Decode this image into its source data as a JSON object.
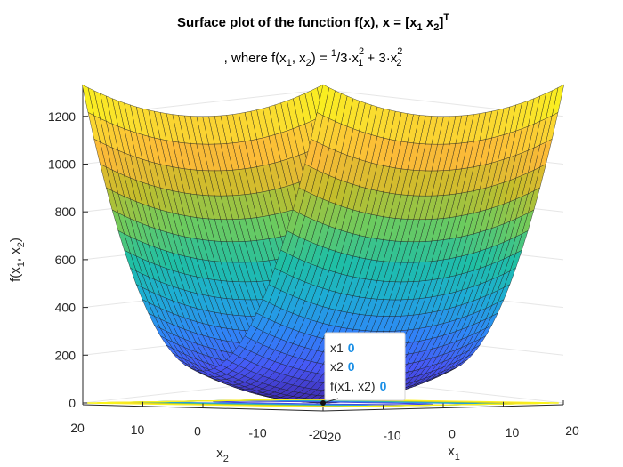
{
  "chart_data": {
    "type": "surface",
    "title": {
      "main": "Surface plot of the function f(x), x = [x",
      "main_sub1": "1",
      "main_mid": " x",
      "main_sub2": "2",
      "main_end": "]",
      "main_sup": "T",
      "line2_a": ", where f(x",
      "line2_sub1": "1",
      "line2_b": ", x",
      "line2_sub2": "2",
      "line2_c": ") = ",
      "line2_frac_num": "1",
      "line2_frac_den": "/3",
      "line2_d": "·x",
      "line2_sup1": "2",
      "line2_sub3": "1",
      "line2_e": " + 3·x",
      "line2_sup2": "2",
      "line2_sub4": "2"
    },
    "function": "f(x1, x2) = (1/3)*x1^2 + 3*x2^2",
    "x1_range": [
      -20,
      20
    ],
    "x2_range": [
      -20,
      20
    ],
    "zlim": [
      0,
      1333
    ],
    "z_ticks": [
      "0",
      "200",
      "400",
      "600",
      "800",
      "1000",
      "1200"
    ],
    "x2_ticks": [
      "20",
      "10",
      "0",
      "-10",
      "-20"
    ],
    "x1_ticks": [
      "-20",
      "-10",
      "0",
      "10",
      "20"
    ],
    "xlabel": {
      "base": "x",
      "sub": "1"
    },
    "ylabel": {
      "base": "x",
      "sub": "2"
    },
    "zlabel": {
      "a": "f(x",
      "sub1": "1",
      "b": ", x",
      "sub2": "2",
      "c": ")"
    },
    "colormap": [
      "#3e26a8",
      "#4757f6",
      "#2e87f7",
      "#1dadd4",
      "#1fbfa4",
      "#6ccb5f",
      "#c5bd2a",
      "#fbba38",
      "#fadd2f",
      "#f9fb15"
    ],
    "grid": true,
    "contour_on_floor": true,
    "datatip": {
      "labels": [
        "x1",
        "x2",
        "f(x1, x2)"
      ],
      "values": [
        "0",
        "0",
        "0"
      ],
      "value_color": "#1a8fe6"
    }
  }
}
